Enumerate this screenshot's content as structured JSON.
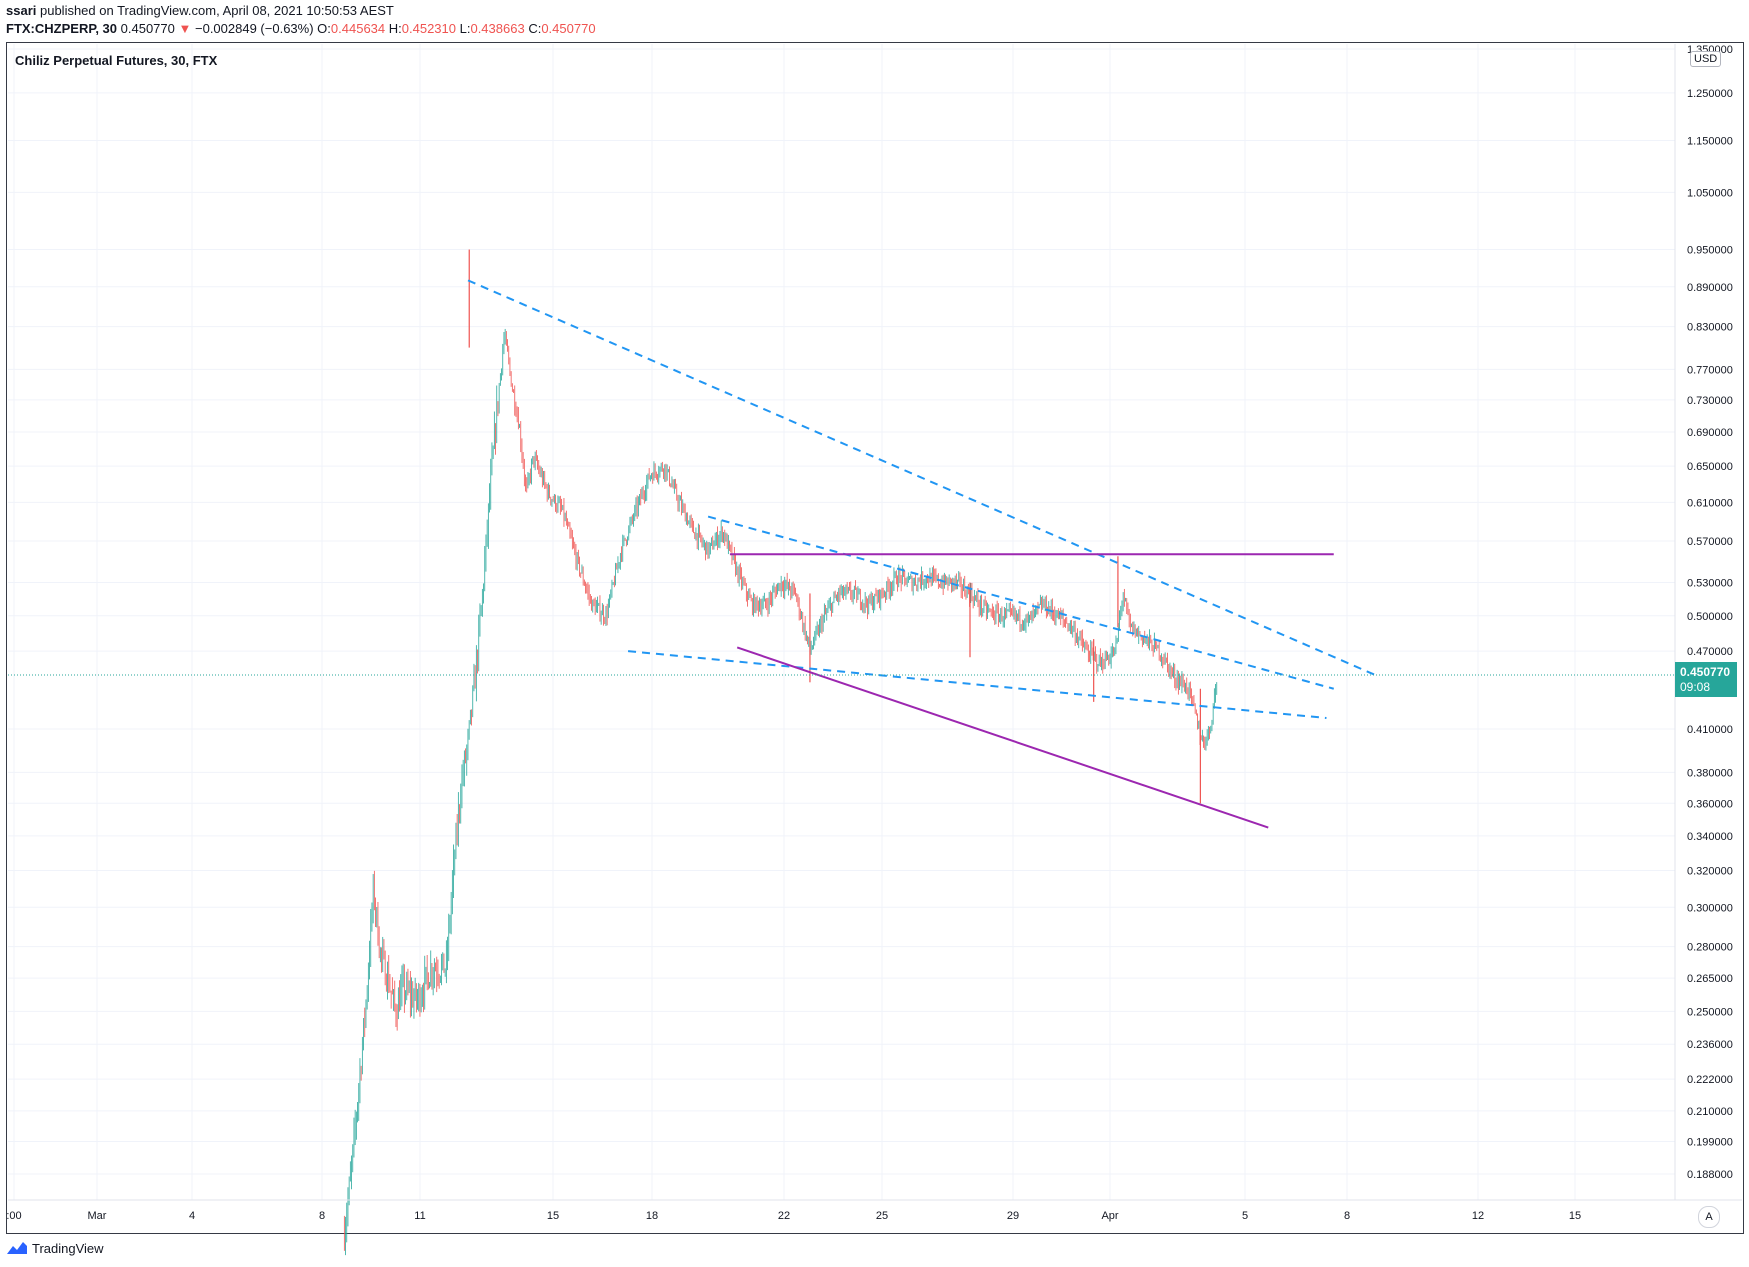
{
  "header": {
    "publisher": "ssari",
    "published_text": " published on TradingView.com, April 08, 2021 10:50:53 AEST",
    "symbol": "FTX:CHZPERP, 30",
    "last": "0.450770",
    "arrow": "▼",
    "change": "−0.002849 (−0.63%)",
    "o_label": "O:",
    "o_value": "0.445634",
    "h_label": "H:",
    "h_value": "0.452310",
    "l_label": "L:",
    "l_value": "0.438663",
    "c_label": "C:",
    "c_value": "0.450770"
  },
  "pane_title": "Chiliz Perpetual Futures, 30, FTX",
  "currency": "USD",
  "price_label": {
    "value": "0.450770",
    "countdown": "09:08"
  },
  "auto_button": "A",
  "footer": {
    "brand": "TradingView"
  },
  "colors": {
    "up": "#26a69a",
    "down": "#ef5350",
    "trend_dashed": "#2196f3",
    "trend_solid": "#9c27b0",
    "price_line": "#26a69a",
    "grid": "#f0f3fa"
  },
  "chart_data": {
    "type": "candlestick",
    "title": "Chiliz Perpetual Futures, 30, FTX",
    "y_scale": "log",
    "y_ticks": [
      "1.350000",
      "1.250000",
      "1.150000",
      "1.050000",
      "0.950000",
      "0.890000",
      "0.830000",
      "0.770000",
      "0.730000",
      "0.690000",
      "0.650000",
      "0.610000",
      "0.570000",
      "0.530000",
      "0.500000",
      "0.470000",
      "0.410000",
      "0.380000",
      "0.360000",
      "0.340000",
      "0.320000",
      "0.300000",
      "0.280000",
      "0.265000",
      "0.250000",
      "0.236000",
      "0.222000",
      "0.210000",
      "0.199000",
      "0.188000"
    ],
    "x_ticks": [
      ":00",
      "Mar",
      "4",
      "8",
      "11",
      "15",
      "18",
      "22",
      "25",
      "29",
      "Apr",
      "5",
      "8",
      "12",
      "15"
    ],
    "current_price": 0.45077,
    "price_path": [
      [
        "Mar 9 12:00",
        0.17
      ],
      [
        "Mar 9 18:00",
        0.19
      ],
      [
        "Mar 10 00:00",
        0.22
      ],
      [
        "Mar 10 06:00",
        0.255
      ],
      [
        "Mar 10 12:00",
        0.31
      ],
      [
        "Mar 10 18:00",
        0.275
      ],
      [
        "Mar 11 00:00",
        0.265
      ],
      [
        "Mar 11 06:00",
        0.25
      ],
      [
        "Mar 11 12:00",
        0.26
      ],
      [
        "Mar 12 00:00",
        0.255
      ],
      [
        "Mar 12 12:00",
        0.27
      ],
      [
        "Mar 13 00:00",
        0.27
      ],
      [
        "Mar 13 06:00",
        0.32
      ],
      [
        "Mar 13 12:00",
        0.37
      ],
      [
        "Mar 13 18:00",
        0.4
      ],
      [
        "Mar 14 00:00",
        0.45
      ],
      [
        "Mar 14 06:00",
        0.52
      ],
      [
        "Mar 14 12:00",
        0.62
      ],
      [
        "Mar 14 18:00",
        0.72
      ],
      [
        "Mar 15 00:00",
        0.82
      ],
      [
        "Mar 15 06:00",
        0.75
      ],
      [
        "Mar 15 12:00",
        0.7
      ],
      [
        "Mar 15 18:00",
        0.62
      ],
      [
        "Mar 16 00:00",
        0.66
      ],
      [
        "Mar 16 12:00",
        0.62
      ],
      [
        "Mar 17 00:00",
        0.6
      ],
      [
        "Mar 17 12:00",
        0.55
      ],
      [
        "Mar 18 00:00",
        0.51
      ],
      [
        "Mar 18 12:00",
        0.5
      ],
      [
        "Mar 19 00:00",
        0.56
      ],
      [
        "Mar 19 12:00",
        0.6
      ],
      [
        "Mar 20 00:00",
        0.64
      ],
      [
        "Mar 20 12:00",
        0.65
      ],
      [
        "Mar 21 00:00",
        0.61
      ],
      [
        "Mar 21 12:00",
        0.58
      ],
      [
        "Mar 22 00:00",
        0.56
      ],
      [
        "Mar 22 12:00",
        0.58
      ],
      [
        "Mar 23 00:00",
        0.54
      ],
      [
        "Mar 23 12:00",
        0.51
      ],
      [
        "Mar 24 00:00",
        0.51
      ],
      [
        "Mar 24 12:00",
        0.53
      ],
      [
        "Mar 25 00:00",
        0.52
      ],
      [
        "Mar 25 12:00",
        0.47
      ],
      [
        "Mar 26 00:00",
        0.5
      ],
      [
        "Mar 26 12:00",
        0.52
      ],
      [
        "Mar 27 00:00",
        0.52
      ],
      [
        "Mar 27 12:00",
        0.51
      ],
      [
        "Mar 28 00:00",
        0.52
      ],
      [
        "Mar 28 12:00",
        0.535
      ],
      [
        "Mar 29 00:00",
        0.53
      ],
      [
        "Mar 29 12:00",
        0.535
      ],
      [
        "Mar 30 00:00",
        0.53
      ],
      [
        "Mar 30 12:00",
        0.53
      ],
      [
        "Mar 31 00:00",
        0.52
      ],
      [
        "Mar 31 12:00",
        0.505
      ],
      [
        "Apr 1 00:00",
        0.5
      ],
      [
        "Apr 1 12:00",
        0.5
      ],
      [
        "Apr 2 00:00",
        0.495
      ],
      [
        "Apr 2 12:00",
        0.51
      ],
      [
        "Apr 3 00:00",
        0.5
      ],
      [
        "Apr 3 12:00",
        0.49
      ],
      [
        "Apr 4 00:00",
        0.47
      ],
      [
        "Apr 4 12:00",
        0.46
      ],
      [
        "Apr 5 00:00",
        0.47
      ],
      [
        "Apr 5 06:00",
        0.52
      ],
      [
        "Apr 5 12:00",
        0.49
      ],
      [
        "Apr 6 00:00",
        0.48
      ],
      [
        "Apr 6 12:00",
        0.47
      ],
      [
        "Apr 7 00:00",
        0.45
      ],
      [
        "Apr 7 12:00",
        0.44
      ],
      [
        "Apr 7 18:00",
        0.42
      ],
      [
        "Apr 8 00:00",
        0.4
      ],
      [
        "Apr 8 06:00",
        0.41
      ],
      [
        "Apr 8 12:00",
        0.45077
      ]
    ]
  }
}
